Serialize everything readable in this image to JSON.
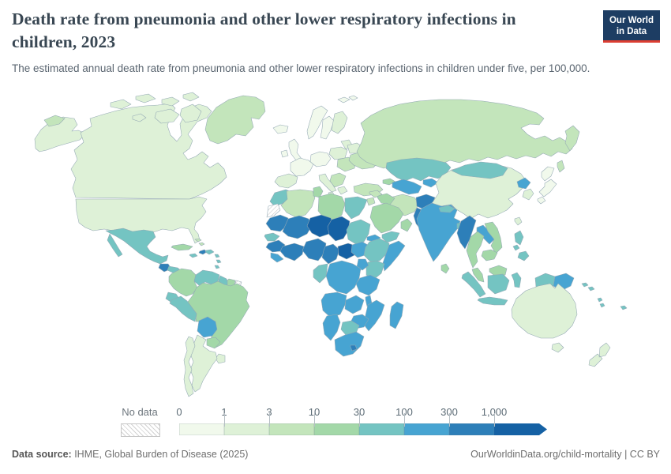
{
  "header": {
    "title": "Death rate from pneumonia and other lower respiratory infections in children, 2023",
    "subtitle": "The estimated annual death rate from pneumonia and other lower respiratory infections in children under five, per 100,000.",
    "logo": {
      "line1": "Our World",
      "line2": "in Data",
      "bg_color": "#1d3d63",
      "accent_color": "#dc3e32"
    }
  },
  "chart_data": {
    "type": "choropleth_map",
    "title": "Death rate from pneumonia and other lower respiratory infections in children",
    "year": 2023,
    "unit": "deaths per 100,000 children under five",
    "legend": {
      "no_data_label": "No data",
      "ticks": [
        "0",
        "1",
        "3",
        "10",
        "30",
        "100",
        "300",
        "1,000"
      ],
      "bins": [
        {
          "range": "0-1",
          "color": "#f1f9ec"
        },
        {
          "range": "1-3",
          "color": "#def1d7"
        },
        {
          "range": "3-10",
          "color": "#c3e5bb"
        },
        {
          "range": "10-30",
          "color": "#a3d8a8"
        },
        {
          "range": "30-100",
          "color": "#74c4c2"
        },
        {
          "range": "100-300",
          "color": "#47a4d2"
        },
        {
          "range": "300-1000",
          "color": "#2d7fb9"
        },
        {
          "range": "1000+",
          "color": "#1561a4"
        }
      ]
    },
    "regions": {
      "canada": {
        "label": "Canada",
        "bin": "1-3"
      },
      "usa": {
        "label": "United States",
        "bin": "1-3"
      },
      "greenland": {
        "label": "Greenland",
        "bin": "3-10"
      },
      "mexico": {
        "label": "Mexico",
        "bin": "30-100"
      },
      "guatemala": {
        "label": "Guatemala",
        "bin": "300-1000"
      },
      "honduras": {
        "label": "Honduras",
        "bin": "30-100"
      },
      "nicaragua": {
        "label": "Nicaragua",
        "bin": "30-100"
      },
      "costa-rica": {
        "label": "Costa Rica",
        "bin": "10-30"
      },
      "panama": {
        "label": "Panama",
        "bin": "30-100"
      },
      "cuba": {
        "label": "Cuba",
        "bin": "10-30"
      },
      "jamaica": {
        "label": "Jamaica",
        "bin": "30-100"
      },
      "haiti": {
        "label": "Haiti",
        "bin": "300-1000"
      },
      "dominican-republic": {
        "label": "Dominican Republic",
        "bin": "30-100"
      },
      "bahamas": {
        "label": "Bahamas",
        "bin": "3-10"
      },
      "lesser-antilles": {
        "label": "Lesser Antilles",
        "bin": "30-100"
      },
      "colombia": {
        "label": "Colombia",
        "bin": "10-30"
      },
      "venezuela": {
        "label": "Venezuela",
        "bin": "30-100"
      },
      "guyana": {
        "label": "Guyana",
        "bin": "30-100"
      },
      "suriname": {
        "label": "Suriname",
        "bin": "10-30"
      },
      "french-guiana": {
        "label": "French Guiana",
        "bin": "No data"
      },
      "ecuador": {
        "label": "Ecuador",
        "bin": "30-100"
      },
      "peru": {
        "label": "Peru",
        "bin": "30-100"
      },
      "bolivia": {
        "label": "Bolivia",
        "bin": "100-300"
      },
      "brazil": {
        "label": "Brazil",
        "bin": "10-30"
      },
      "paraguay": {
        "label": "Paraguay",
        "bin": "10-30"
      },
      "uruguay": {
        "label": "Uruguay",
        "bin": "1-3"
      },
      "argentina": {
        "label": "Argentina",
        "bin": "1-3"
      },
      "chile": {
        "label": "Chile",
        "bin": "1-3"
      },
      "iceland": {
        "label": "Iceland",
        "bin": "0-1"
      },
      "united-kingdom": {
        "label": "United Kingdom",
        "bin": "0-1"
      },
      "ireland": {
        "label": "Ireland",
        "bin": "0-1"
      },
      "norway": {
        "label": "Norway",
        "bin": "0-1"
      },
      "sweden": {
        "label": "Sweden",
        "bin": "0-1"
      },
      "finland": {
        "label": "Finland",
        "bin": "1-3"
      },
      "svalbard": {
        "label": "Svalbard",
        "bin": "0-1"
      },
      "baltic-states": {
        "label": "Baltic states",
        "bin": "1-3"
      },
      "belarus": {
        "label": "Belarus",
        "bin": "1-3"
      },
      "poland": {
        "label": "Poland",
        "bin": "1-3"
      },
      "central-europe": {
        "label": "Central Europe",
        "bin": "0-1"
      },
      "france": {
        "label": "France",
        "bin": "0-1"
      },
      "iberia": {
        "label": "Spain and Portugal",
        "bin": "1-3"
      },
      "italy": {
        "label": "Italy",
        "bin": "1-3"
      },
      "southeast-europe": {
        "label": "Romania and neighbors",
        "bin": "3-10"
      },
      "balkans": {
        "label": "Balkans",
        "bin": "3-10"
      },
      "greece": {
        "label": "Greece",
        "bin": "1-3"
      },
      "ukraine": {
        "label": "Ukraine",
        "bin": "3-10"
      },
      "russia": {
        "label": "Russia",
        "bin": "3-10"
      },
      "turkey": {
        "label": "Turkey",
        "bin": "3-10"
      },
      "caucasus": {
        "label": "Georgia and Armenia",
        "bin": "10-30"
      },
      "azerbaijan": {
        "label": "Azerbaijan",
        "bin": "300-1000"
      },
      "kazakhstan": {
        "label": "Kazakhstan",
        "bin": "30-100"
      },
      "uzbekistan-turkmenistan": {
        "label": "Uzbekistan and Turkmenistan",
        "bin": "100-300"
      },
      "kyrgyzstan-tajikistan": {
        "label": "Kyrgyzstan and Tajikistan",
        "bin": "100-300"
      },
      "iran": {
        "label": "Iran",
        "bin": "3-10"
      },
      "afghanistan": {
        "label": "Afghanistan",
        "bin": "300-1000"
      },
      "pakistan": {
        "label": "Pakistan",
        "bin": "300-1000"
      },
      "iraq": {
        "label": "Iraq",
        "bin": "10-30"
      },
      "syria": {
        "label": "Syria",
        "bin": "3-10"
      },
      "jordan-israel": {
        "label": "Jordan and Israel",
        "bin": "3-10"
      },
      "saudi-arabia": {
        "label": "Saudi Arabia",
        "bin": "10-30"
      },
      "yemen": {
        "label": "Yemen",
        "bin": "30-100"
      },
      "oman": {
        "label": "Oman",
        "bin": "10-30"
      },
      "morocco": {
        "label": "Morocco",
        "bin": "30-100"
      },
      "western-sahara": {
        "label": "Western Sahara",
        "bin": "No data"
      },
      "algeria": {
        "label": "Algeria",
        "bin": "3-10"
      },
      "tunisia": {
        "label": "Tunisia",
        "bin": "10-30"
      },
      "libya": {
        "label": "Libya",
        "bin": "10-30"
      },
      "egypt": {
        "label": "Egypt",
        "bin": "30-100"
      },
      "mauritania": {
        "label": "Mauritania",
        "bin": "300-1000"
      },
      "mali": {
        "label": "Mali",
        "bin": "300-1000"
      },
      "niger": {
        "label": "Niger",
        "bin": "1000+"
      },
      "chad": {
        "label": "Chad",
        "bin": "1000+"
      },
      "sudan": {
        "label": "Sudan",
        "bin": "30-100"
      },
      "eritrea": {
        "label": "Eritrea",
        "bin": "100-300"
      },
      "senegal": {
        "label": "Senegal",
        "bin": "30-100"
      },
      "guinea": {
        "label": "Guinea",
        "bin": "300-1000"
      },
      "sierra-leone-liberia": {
        "label": "Sierra Leone and Liberia",
        "bin": "100-300"
      },
      "cote-divoire-ghana": {
        "label": "Côte d'Ivoire and Ghana",
        "bin": "300-1000"
      },
      "nigeria": {
        "label": "Nigeria",
        "bin": "300-1000"
      },
      "cameroon": {
        "label": "Cameroon",
        "bin": "300-1000"
      },
      "central-african-republic": {
        "label": "Central African Republic",
        "bin": "1000+"
      },
      "south-sudan": {
        "label": "South Sudan",
        "bin": "100-300"
      },
      "ethiopia": {
        "label": "Ethiopia",
        "bin": "30-100"
      },
      "somalia": {
        "label": "Somalia",
        "bin": "100-300"
      },
      "kenya": {
        "label": "Kenya",
        "bin": "30-100"
      },
      "uganda": {
        "label": "Uganda",
        "bin": "100-300"
      },
      "dr-congo": {
        "label": "Democratic Republic of Congo",
        "bin": "100-300"
      },
      "congo-gabon": {
        "label": "Congo and Gabon",
        "bin": "30-100"
      },
      "tanzania": {
        "label": "Tanzania",
        "bin": "100-300"
      },
      "angola": {
        "label": "Angola",
        "bin": "100-300"
      },
      "zambia": {
        "label": "Zambia",
        "bin": "100-300"
      },
      "malawi": {
        "label": "Malawi",
        "bin": "100-300"
      },
      "mozambique": {
        "label": "Mozambique",
        "bin": "100-300"
      },
      "zimbabwe": {
        "label": "Zimbabwe",
        "bin": "100-300"
      },
      "botswana": {
        "label": "Botswana",
        "bin": "30-100"
      },
      "namibia": {
        "label": "Namibia",
        "bin": "100-300"
      },
      "south-africa": {
        "label": "South Africa",
        "bin": "100-300"
      },
      "lesotho": {
        "label": "Lesotho",
        "bin": "300-1000"
      },
      "madagascar": {
        "label": "Madagascar",
        "bin": "100-300"
      },
      "india": {
        "label": "India",
        "bin": "100-300"
      },
      "nepal": {
        "label": "Nepal",
        "bin": "30-100"
      },
      "bangladesh": {
        "label": "Bangladesh",
        "bin": "30-100"
      },
      "sri-lanka": {
        "label": "Sri Lanka",
        "bin": "10-30"
      },
      "china": {
        "label": "China",
        "bin": "1-3"
      },
      "mongolia": {
        "label": "Mongolia",
        "bin": "30-100"
      },
      "north-korea": {
        "label": "North Korea",
        "bin": "100-300"
      },
      "south-korea": {
        "label": "South Korea",
        "bin": "1-3"
      },
      "japan": {
        "label": "Japan",
        "bin": "0-1"
      },
      "taiwan": {
        "label": "Taiwan",
        "bin": "1-3"
      },
      "myanmar": {
        "label": "Myanmar",
        "bin": "300-1000"
      },
      "thailand": {
        "label": "Thailand",
        "bin": "10-30"
      },
      "laos": {
        "label": "Laos",
        "bin": "100-300"
      },
      "vietnam": {
        "label": "Vietnam",
        "bin": "10-30"
      },
      "cambodia": {
        "label": "Cambodia",
        "bin": "10-30"
      },
      "malaysia": {
        "label": "Malaysia",
        "bin": "10-30"
      },
      "indonesia": {
        "label": "Indonesia",
        "bin": "30-100"
      },
      "philippines": {
        "label": "Philippines",
        "bin": "30-100"
      },
      "papua-new-guinea": {
        "label": "Papua New Guinea",
        "bin": "100-300"
      },
      "solomon-islands": {
        "label": "Solomon Islands",
        "bin": "30-100"
      },
      "vanuatu": {
        "label": "Vanuatu",
        "bin": "30-100"
      },
      "fiji": {
        "label": "Fiji",
        "bin": "30-100"
      },
      "australia": {
        "label": "Australia",
        "bin": "1-3"
      },
      "new-zealand": {
        "label": "New Zealand",
        "bin": "1-3"
      }
    }
  },
  "footer": {
    "source_label": "Data source:",
    "source_value": " IHME, Global Burden of Disease (2025)",
    "link": "OurWorldinData.org/child-mortality",
    "suffix": " | CC BY"
  }
}
